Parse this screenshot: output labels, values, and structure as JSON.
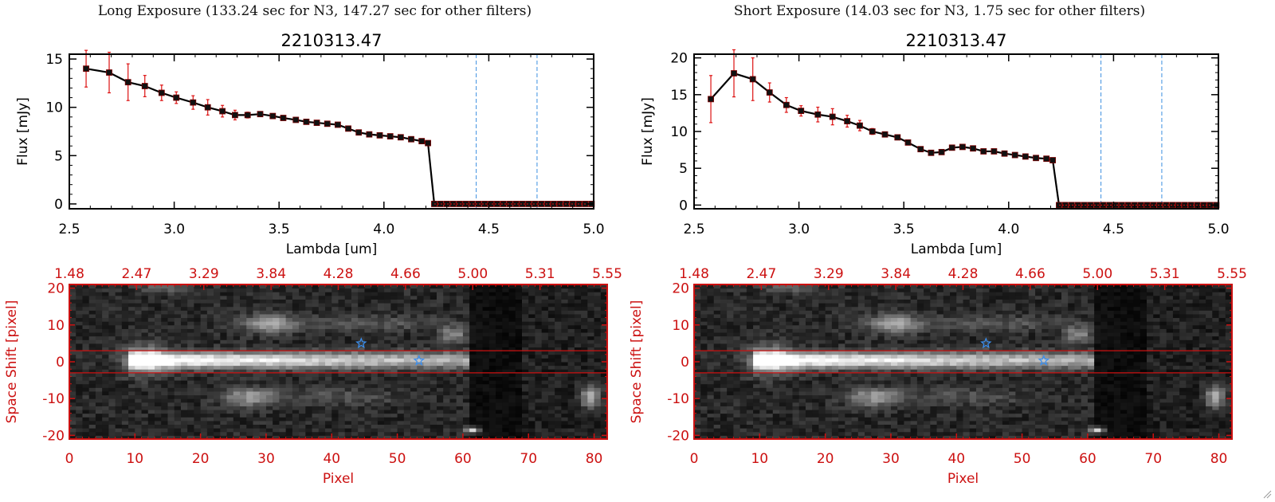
{
  "colors": {
    "axis_red": "#cc1111",
    "dashed_blue": "#3b8fe0",
    "line": "#000000",
    "errbar": "#dd1111",
    "star": "#3a8ff0"
  },
  "panels": [
    {
      "title": "Long Exposure (133.24 sec for N3, 147.27 sec for other filters)",
      "spectrum_plot": {
        "title": "2210313.47",
        "xlabel": "Lambda [um]",
        "ylabel": "Flux [mJy]"
      },
      "image_plot": {
        "top_ticks": [
          "1.48",
          "2.47",
          "3.29",
          "3.84",
          "4.28",
          "4.66",
          "5.00",
          "5.31",
          "5.55"
        ],
        "xlabel": "Pixel",
        "ylabel": "Space Shift [pixel]"
      }
    },
    {
      "title": "Short Exposure (14.03 sec for N3, 1.75 sec for other filters)",
      "spectrum_plot": {
        "title": "2210313.47",
        "xlabel": "Lambda [um]",
        "ylabel": "Flux [mJy]"
      },
      "image_plot": {
        "top_ticks": [
          "1.48",
          "2.47",
          "3.29",
          "3.84",
          "4.28",
          "4.66",
          "5.00",
          "5.31",
          "5.55"
        ],
        "xlabel": "Pixel",
        "ylabel": "Space Shift [pixel]"
      }
    }
  ],
  "chart_data": [
    {
      "type": "line",
      "title": "2210313.47",
      "xlabel": "Lambda [um]",
      "ylabel": "Flux [mJy]",
      "xlim": [
        2.5,
        5.0
      ],
      "ylim": [
        -0.5,
        15.5
      ],
      "xticks": [
        "2.5",
        "3.0",
        "3.5",
        "4.0",
        "4.5",
        "5.0"
      ],
      "yticks": [
        "0",
        "5",
        "10",
        "15"
      ],
      "vlines": [
        4.44,
        4.73
      ],
      "x": [
        2.58,
        2.69,
        2.78,
        2.86,
        2.94,
        3.01,
        3.09,
        3.16,
        3.23,
        3.29,
        3.35,
        3.41,
        3.47,
        3.52,
        3.58,
        3.63,
        3.68,
        3.73,
        3.78,
        3.83,
        3.88,
        3.93,
        3.98,
        4.03,
        4.08,
        4.13,
        4.18,
        4.21,
        4.24,
        4.27,
        4.3,
        4.33,
        4.36,
        4.39,
        4.42,
        4.45,
        4.48,
        4.51,
        4.54,
        4.57,
        4.6,
        4.63,
        4.66,
        4.69,
        4.72,
        4.75,
        4.78,
        4.81,
        4.84,
        4.87,
        4.9,
        4.93,
        4.96,
        4.99
      ],
      "y": [
        14.0,
        13.6,
        12.6,
        12.2,
        11.5,
        11.0,
        10.5,
        10.0,
        9.6,
        9.2,
        9.2,
        9.3,
        9.1,
        8.9,
        8.7,
        8.5,
        8.4,
        8.3,
        8.2,
        7.8,
        7.4,
        7.2,
        7.1,
        7.0,
        6.9,
        6.7,
        6.5,
        6.3,
        0,
        0,
        0,
        0,
        0,
        0,
        0,
        0,
        0,
        0,
        0,
        0,
        0,
        0,
        0,
        0,
        0,
        0,
        0,
        0,
        0,
        0,
        0,
        0,
        0,
        0
      ],
      "yerr": [
        1.9,
        2.1,
        1.9,
        1.1,
        0.8,
        0.6,
        0.7,
        0.8,
        0.6,
        0.5,
        0.3,
        0.2,
        0.2,
        0.2,
        0.2,
        0.2,
        0.2,
        0.2,
        0.2,
        0.2,
        0.2,
        0.2,
        0.2,
        0.2,
        0.2,
        0.2,
        0.2,
        0.2,
        0,
        0,
        0,
        0,
        0,
        0,
        0,
        0,
        0,
        0,
        0,
        0,
        0,
        0,
        0,
        0,
        0,
        0,
        0,
        0,
        0,
        0,
        0,
        0,
        0,
        0
      ]
    },
    {
      "type": "heatmap",
      "xlabel": "Pixel",
      "ylabel": "Space Shift [pixel]",
      "xlim": [
        0,
        82
      ],
      "ylim": [
        -21,
        21
      ],
      "xticks": [
        "0",
        "10",
        "20",
        "30",
        "40",
        "50",
        "60",
        "70",
        "80"
      ],
      "yticks": [
        "-20",
        "-10",
        "0",
        "10",
        "20"
      ],
      "top_ticks": [
        "1.48",
        "2.47",
        "3.29",
        "3.84",
        "4.28",
        "4.66",
        "5.00",
        "5.31",
        "5.55"
      ],
      "hlines": [
        3,
        -3
      ],
      "stars": [
        [
          44.5,
          5
        ],
        [
          53.3,
          0.3
        ]
      ]
    },
    {
      "type": "line",
      "title": "2210313.47",
      "xlabel": "Lambda [um]",
      "ylabel": "Flux [mJy]",
      "xlim": [
        2.5,
        5.0
      ],
      "ylim": [
        -0.5,
        20.5
      ],
      "xticks": [
        "2.5",
        "3.0",
        "3.5",
        "4.0",
        "4.5",
        "5.0"
      ],
      "yticks": [
        "0",
        "5",
        "10",
        "15",
        "20"
      ],
      "vlines": [
        4.44,
        4.73
      ],
      "x": [
        2.58,
        2.69,
        2.78,
        2.86,
        2.94,
        3.01,
        3.09,
        3.16,
        3.23,
        3.29,
        3.35,
        3.41,
        3.47,
        3.52,
        3.58,
        3.63,
        3.68,
        3.73,
        3.78,
        3.83,
        3.88,
        3.93,
        3.98,
        4.03,
        4.08,
        4.13,
        4.18,
        4.21,
        4.24,
        4.27,
        4.3,
        4.33,
        4.36,
        4.39,
        4.42,
        4.45,
        4.48,
        4.51,
        4.54,
        4.57,
        4.6,
        4.63,
        4.66,
        4.69,
        4.72,
        4.75,
        4.78,
        4.81,
        4.84,
        4.87,
        4.9,
        4.93,
        4.96,
        4.99
      ],
      "y": [
        14.4,
        17.9,
        17.1,
        15.3,
        13.6,
        12.8,
        12.3,
        12.0,
        11.4,
        10.8,
        10.0,
        9.6,
        9.2,
        8.5,
        7.6,
        7.1,
        7.2,
        7.8,
        7.9,
        7.7,
        7.3,
        7.3,
        7.0,
        6.8,
        6.6,
        6.4,
        6.3,
        6.1,
        0,
        0,
        0,
        0,
        0,
        0,
        0,
        0,
        0,
        0,
        0,
        0,
        0,
        0,
        0,
        0,
        0,
        0,
        0,
        0,
        0,
        0,
        0,
        0,
        0,
        0
      ],
      "yerr": [
        3.2,
        3.2,
        2.9,
        1.3,
        1.0,
        0.7,
        1.0,
        1.1,
        0.8,
        0.7,
        0.4,
        0.3,
        0.3,
        0.3,
        0.3,
        0.3,
        0.3,
        0.3,
        0.3,
        0.3,
        0.3,
        0.3,
        0.3,
        0.3,
        0.3,
        0.3,
        0.3,
        0.3,
        0,
        0,
        0,
        0,
        0,
        0,
        0,
        0,
        0,
        0,
        0,
        0,
        0,
        0,
        0,
        0,
        0,
        0,
        0,
        0,
        0,
        0,
        0,
        0,
        0,
        0
      ]
    },
    {
      "type": "heatmap",
      "xlabel": "Pixel",
      "ylabel": "Space Shift [pixel]",
      "xlim": [
        0,
        82
      ],
      "ylim": [
        -21,
        21
      ],
      "xticks": [
        "0",
        "10",
        "20",
        "30",
        "40",
        "50",
        "60",
        "70",
        "80"
      ],
      "yticks": [
        "-20",
        "-10",
        "0",
        "10",
        "20"
      ],
      "top_ticks": [
        "1.48",
        "2.47",
        "3.29",
        "3.84",
        "4.28",
        "4.66",
        "5.00",
        "5.31",
        "5.55"
      ],
      "hlines": [
        3,
        -3
      ],
      "stars": [
        [
          44.5,
          5
        ],
        [
          53.3,
          0.3
        ]
      ]
    }
  ]
}
